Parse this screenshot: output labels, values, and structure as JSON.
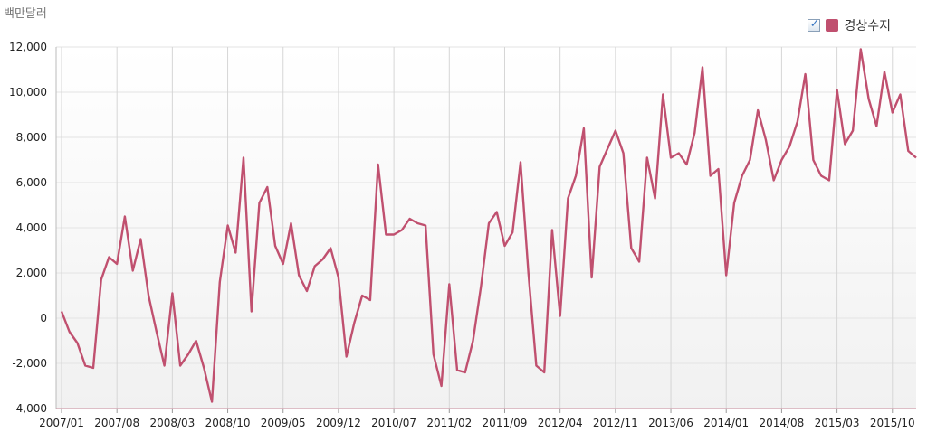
{
  "chart_data": {
    "type": "line",
    "unit_label": "백만달러",
    "legend_checked": true,
    "series": [
      {
        "name": "경상수지",
        "color": "#c0506f",
        "values": [
          300,
          -600,
          -1100,
          -2100,
          -2200,
          1700,
          2700,
          2400,
          4500,
          2100,
          3500,
          1000,
          -600,
          -2100,
          1100,
          -2100,
          -1600,
          -1000,
          -2200,
          -3700,
          1600,
          4100,
          2900,
          7100,
          300,
          5100,
          5800,
          3200,
          2400,
          4200,
          1900,
          1200,
          2300,
          2600,
          3100,
          1800,
          -1700,
          -200,
          1000,
          800,
          6800,
          3700,
          3700,
          3900,
          4400,
          4200,
          4100,
          -1600,
          -3000,
          1500,
          -2300,
          -2400,
          -1000,
          1400,
          4200,
          4700,
          3200,
          3800,
          6900,
          2000,
          -2100,
          -2400,
          3900,
          100,
          5300,
          6300,
          8400,
          1800,
          6700,
          7500,
          8300,
          7300,
          3100,
          2500,
          7100,
          5300,
          9900,
          7100,
          7300,
          6800,
          8200,
          11100,
          6300,
          6600,
          1900,
          5100,
          6300,
          7000,
          9200,
          7900,
          6100,
          7000,
          7600,
          8700,
          10800,
          7000,
          6300,
          6100,
          10100,
          7700,
          8300,
          11900,
          9700,
          8500,
          10900,
          9100,
          9900,
          7400,
          7100
        ]
      }
    ],
    "x_labels": [
      "2007/01",
      "2007/08",
      "2008/03",
      "2008/10",
      "2009/05",
      "2009/12",
      "2010/07",
      "2011/02",
      "2011/09",
      "2012/04",
      "2012/11",
      "2013/06",
      "2014/01",
      "2014/08",
      "2015/03",
      "2015/10"
    ],
    "x_label_step": 7,
    "ylim": [
      -4000,
      12000
    ],
    "y_ticks": [
      "-4,000",
      "-2,000",
      "0",
      "2,000",
      "4,000",
      "6,000",
      "8,000",
      "10,000",
      "12,000"
    ],
    "y_tick_values": [
      -4000,
      -2000,
      0,
      2000,
      4000,
      6000,
      8000,
      10000,
      12000
    ],
    "grid": true,
    "legend_position": "top-right"
  }
}
